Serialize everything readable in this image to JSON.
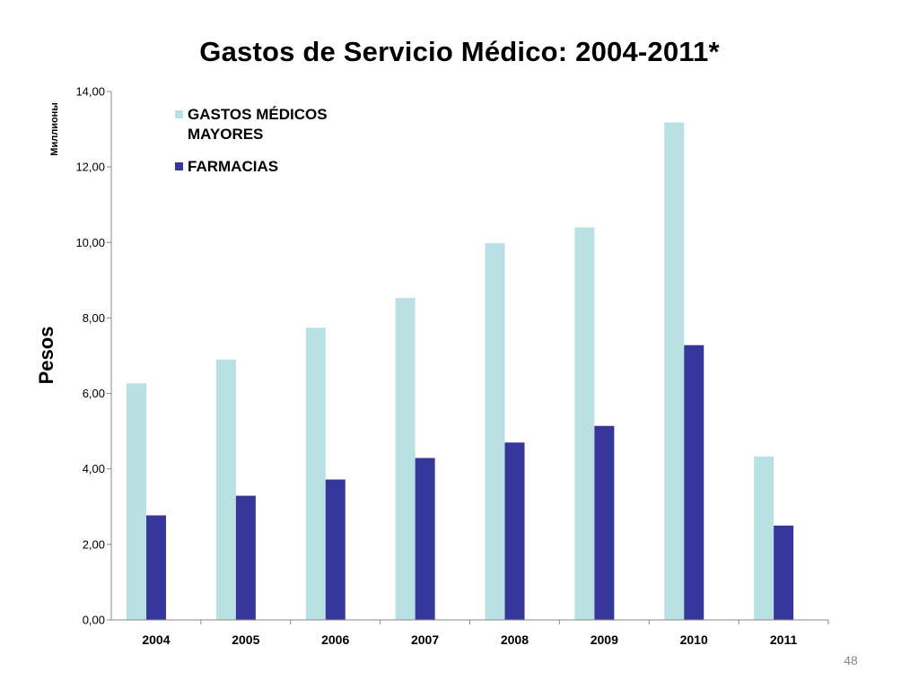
{
  "chart_data": {
    "type": "bar",
    "title": "Gastos  de  Servicio Médico: 2004-2011*",
    "ylabel": "Pesos",
    "yunits": "Миллионы",
    "ylim": [
      0,
      14
    ],
    "yticks": [
      "0,00",
      "2,00",
      "4,00",
      "6,00",
      "8,00",
      "10,00",
      "12,00",
      "14,00"
    ],
    "categories": [
      "2004",
      "2005",
      "2006",
      "2007",
      "2008",
      "2009",
      "2010",
      "2011"
    ],
    "series": [
      {
        "name": "GASTOS MÉDICOS MAYORES",
        "legend_lines": [
          "GASTOS MÉDICOS",
          "MAYORES"
        ],
        "color": "#B9E1E4",
        "values": [
          6.27,
          6.9,
          7.74,
          8.53,
          9.98,
          10.4,
          13.18,
          4.33
        ]
      },
      {
        "name": "FARMACIAS",
        "legend_lines": [
          "FARMACIAS"
        ],
        "color": "#37369A",
        "values": [
          2.77,
          3.29,
          3.72,
          4.29,
          4.7,
          5.14,
          7.28,
          2.5
        ]
      }
    ],
    "grid": false,
    "legend_position": "top-left"
  },
  "page_number": "48"
}
